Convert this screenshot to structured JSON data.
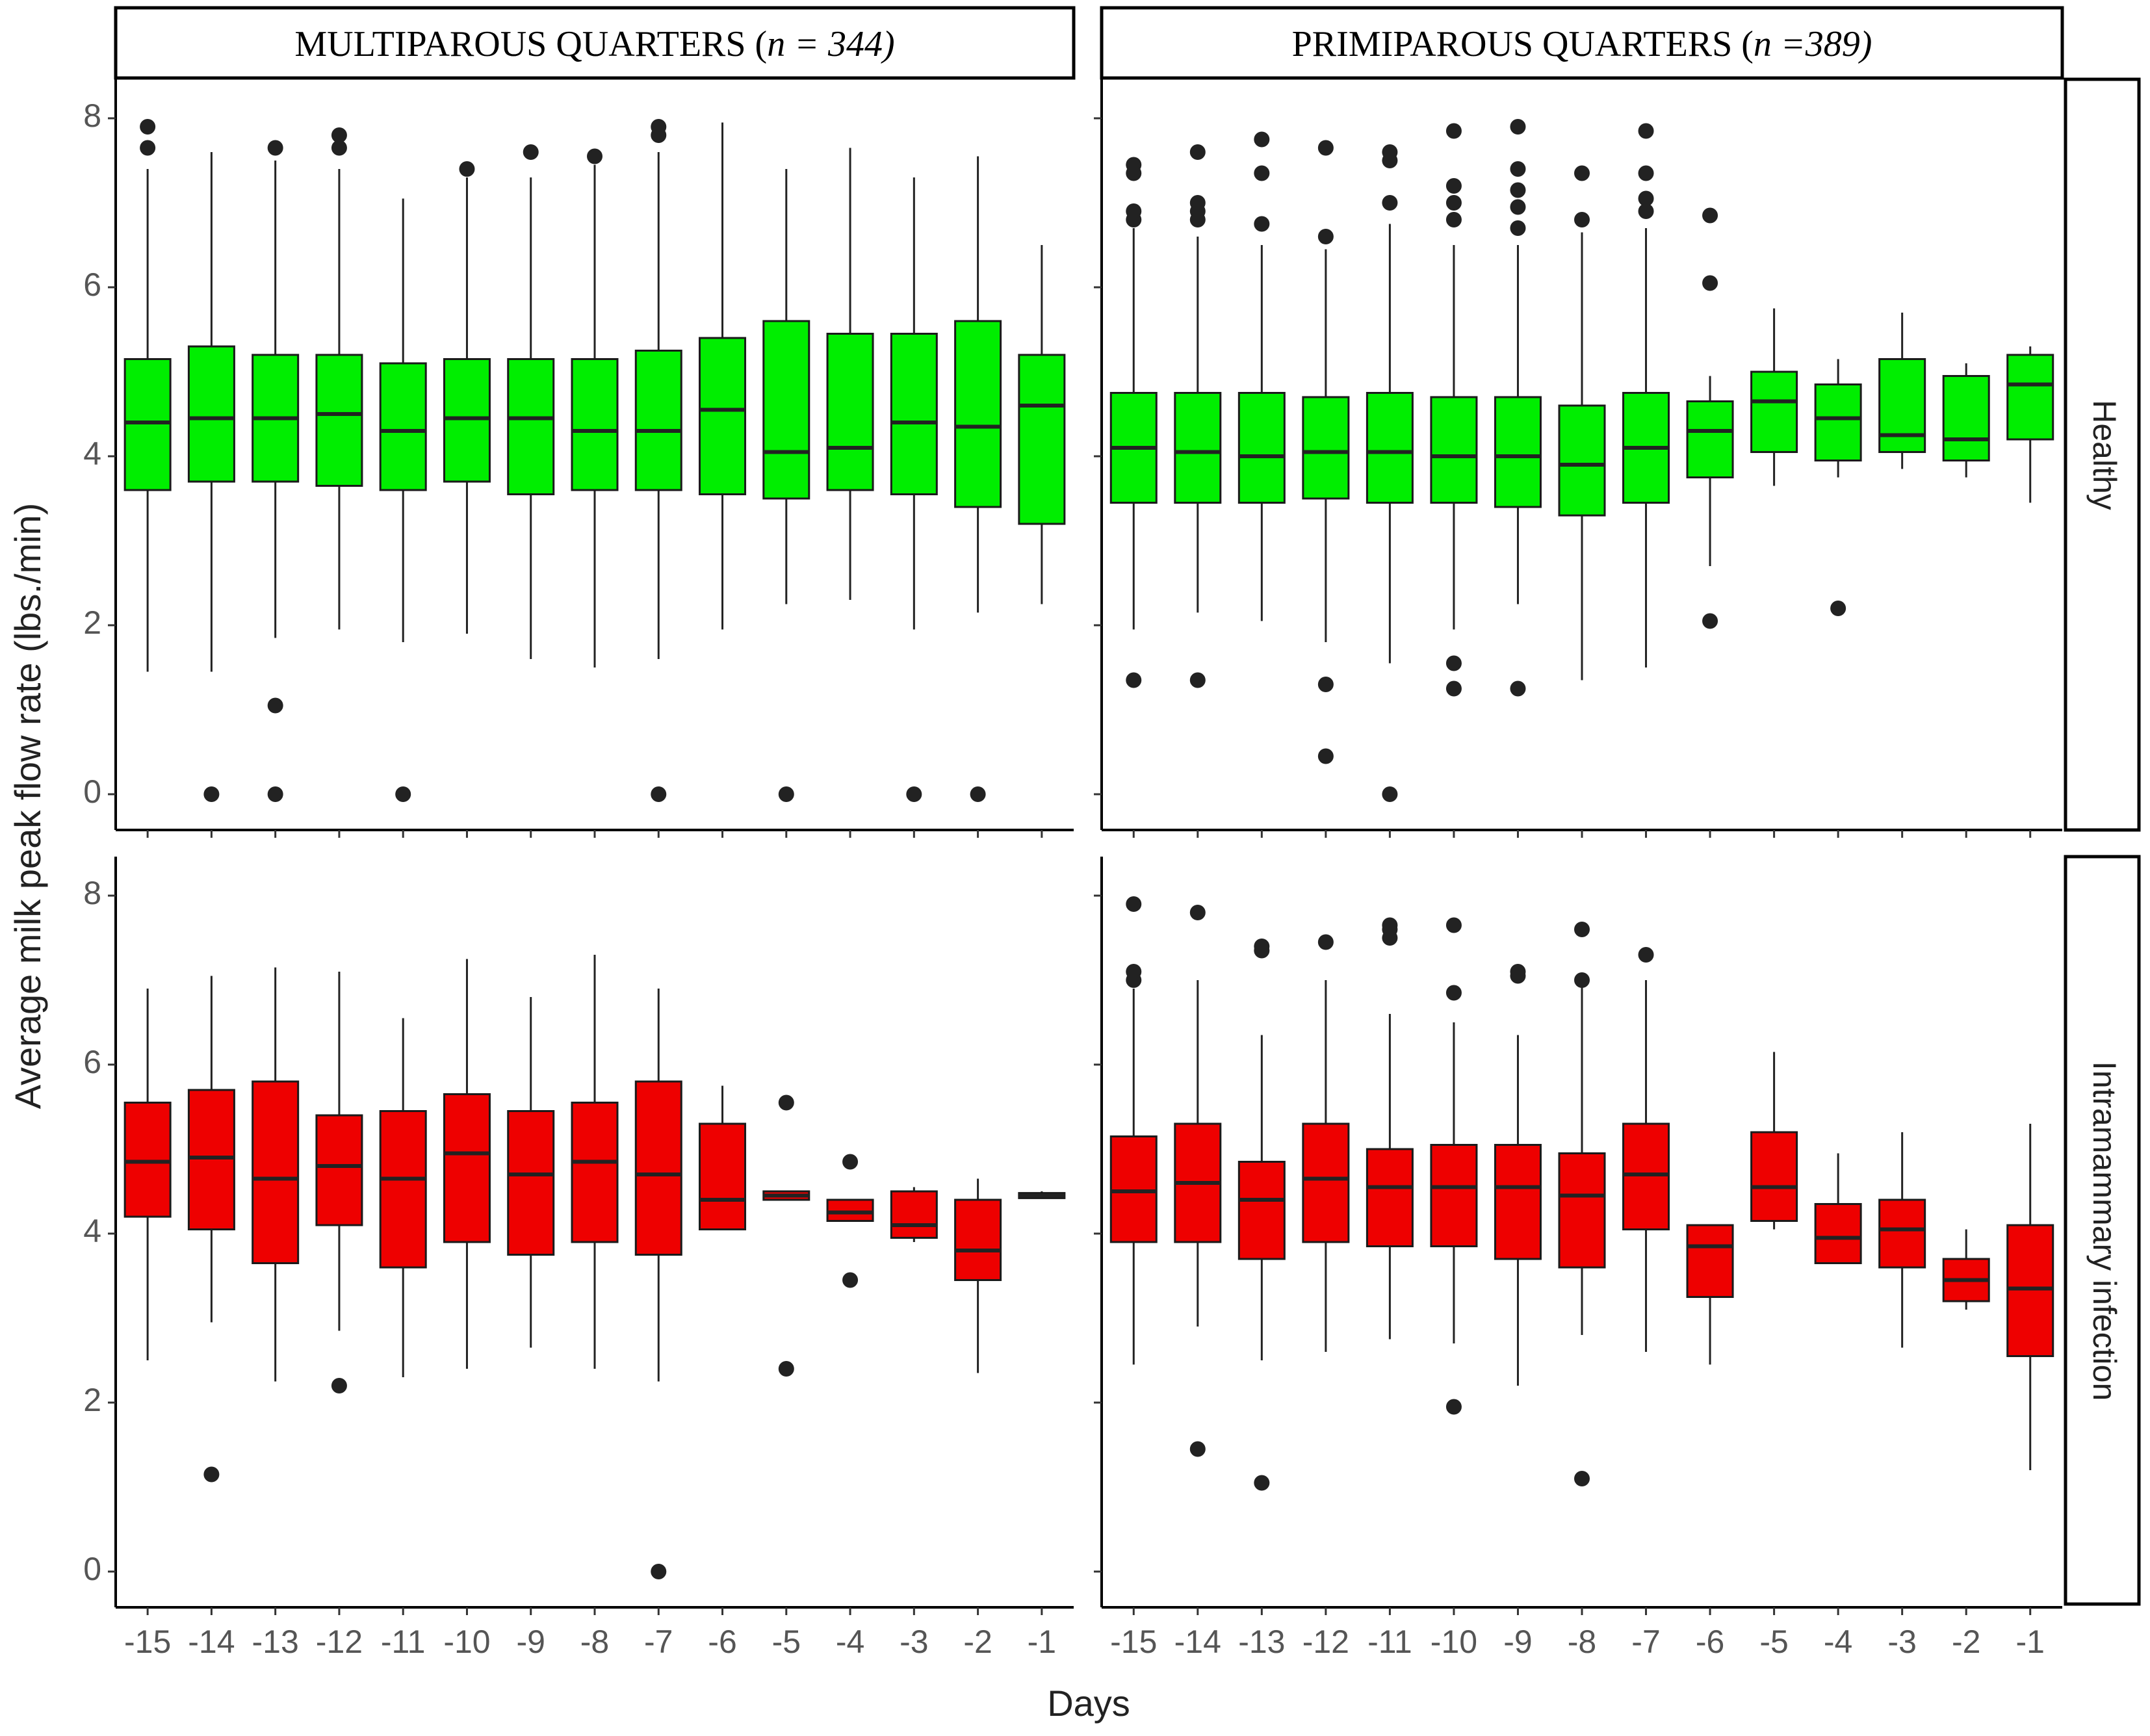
{
  "chart_data": {
    "type": "boxplot",
    "xlabel": "Days",
    "ylabel": "Average milk peak flow rate (lbs./min)",
    "ylim": [
      0,
      8
    ],
    "yticks": [
      "0",
      "2",
      "4",
      "6",
      "8"
    ],
    "categories": [
      "-15",
      "-14",
      "-13",
      "-12",
      "-11",
      "-10",
      "-9",
      "-8",
      "-7",
      "-6",
      "-5",
      "-4",
      "-3",
      "-2",
      "-1"
    ],
    "columns": [
      {
        "label_main": "MULTIPAROUS QUARTERS (",
        "label_n": "n = 344)"
      },
      {
        "label_main": "PRIMIPAROUS QUARTERS (",
        "label_n": "n =389)"
      }
    ],
    "rows": [
      {
        "label": "Healthy",
        "color": "#00ee00"
      },
      {
        "label": "Intramammary infection",
        "color": "#ee0000"
      }
    ],
    "panels": [
      {
        "row": 0,
        "col": 0,
        "boxes": [
          {
            "q1": 3.6,
            "med": 4.4,
            "q3": 5.15,
            "lo": 1.45,
            "hi": 7.4,
            "out": [
              7.65,
              7.9
            ]
          },
          {
            "q1": 3.7,
            "med": 4.45,
            "q3": 5.3,
            "lo": 1.45,
            "hi": 7.6,
            "out": [
              0
            ]
          },
          {
            "q1": 3.7,
            "med": 4.45,
            "q3": 5.2,
            "lo": 1.85,
            "hi": 7.5,
            "out": [
              0,
              1.05,
              7.65
            ]
          },
          {
            "q1": 3.65,
            "med": 4.5,
            "q3": 5.2,
            "lo": 1.95,
            "hi": 7.4,
            "out": [
              7.65,
              7.8
            ]
          },
          {
            "q1": 3.6,
            "med": 4.3,
            "q3": 5.1,
            "lo": 1.8,
            "hi": 7.05,
            "out": [
              0
            ]
          },
          {
            "q1": 3.7,
            "med": 4.45,
            "q3": 5.15,
            "lo": 1.9,
            "hi": 7.3,
            "out": [
              7.4
            ]
          },
          {
            "q1": 3.55,
            "med": 4.45,
            "q3": 5.15,
            "lo": 1.6,
            "hi": 7.3,
            "out": [
              7.6
            ]
          },
          {
            "q1": 3.6,
            "med": 4.3,
            "q3": 5.15,
            "lo": 1.5,
            "hi": 7.45,
            "out": [
              7.55
            ]
          },
          {
            "q1": 3.6,
            "med": 4.3,
            "q3": 5.25,
            "lo": 1.6,
            "hi": 7.6,
            "out": [
              0,
              7.8,
              7.9
            ]
          },
          {
            "q1": 3.55,
            "med": 4.55,
            "q3": 5.4,
            "lo": 1.95,
            "hi": 7.95,
            "out": []
          },
          {
            "q1": 3.5,
            "med": 4.05,
            "q3": 5.6,
            "lo": 2.25,
            "hi": 7.4,
            "out": [
              0
            ]
          },
          {
            "q1": 3.6,
            "med": 4.1,
            "q3": 5.45,
            "lo": 2.3,
            "hi": 7.65,
            "out": []
          },
          {
            "q1": 3.55,
            "med": 4.4,
            "q3": 5.45,
            "lo": 1.95,
            "hi": 7.3,
            "out": [
              0
            ]
          },
          {
            "q1": 3.4,
            "med": 4.35,
            "q3": 5.6,
            "lo": 2.15,
            "hi": 7.55,
            "out": [
              0
            ]
          },
          {
            "q1": 3.2,
            "med": 4.6,
            "q3": 5.2,
            "lo": 2.25,
            "hi": 6.5,
            "out": []
          }
        ]
      },
      {
        "row": 0,
        "col": 1,
        "boxes": [
          {
            "q1": 3.45,
            "med": 4.1,
            "q3": 4.75,
            "lo": 1.95,
            "hi": 6.7,
            "out": [
              1.35,
              6.8,
              6.9,
              7.35,
              7.45
            ]
          },
          {
            "q1": 3.45,
            "med": 4.05,
            "q3": 4.75,
            "lo": 2.15,
            "hi": 6.6,
            "out": [
              1.35,
              6.8,
              6.9,
              7.0,
              7.6
            ]
          },
          {
            "q1": 3.45,
            "med": 4.0,
            "q3": 4.75,
            "lo": 2.05,
            "hi": 6.5,
            "out": [
              6.75,
              7.35,
              7.75
            ]
          },
          {
            "q1": 3.5,
            "med": 4.05,
            "q3": 4.7,
            "lo": 1.8,
            "hi": 6.45,
            "out": [
              0.45,
              1.3,
              6.6,
              7.65
            ]
          },
          {
            "q1": 3.45,
            "med": 4.05,
            "q3": 4.75,
            "lo": 1.55,
            "hi": 6.75,
            "out": [
              0,
              7.0,
              7.5,
              7.6
            ]
          },
          {
            "q1": 3.45,
            "med": 4.0,
            "q3": 4.7,
            "lo": 1.95,
            "hi": 6.5,
            "out": [
              1.25,
              1.55,
              6.8,
              7.0,
              7.2,
              7.85
            ]
          },
          {
            "q1": 3.4,
            "med": 4.0,
            "q3": 4.7,
            "lo": 2.25,
            "hi": 6.5,
            "out": [
              1.25,
              6.7,
              6.95,
              7.15,
              7.4,
              7.9
            ]
          },
          {
            "q1": 3.3,
            "med": 3.9,
            "q3": 4.6,
            "lo": 1.35,
            "hi": 6.65,
            "out": [
              6.8,
              7.35
            ]
          },
          {
            "q1": 3.45,
            "med": 4.1,
            "q3": 4.75,
            "lo": 1.5,
            "hi": 6.7,
            "out": [
              6.9,
              7.05,
              7.35,
              7.85
            ]
          },
          {
            "q1": 3.75,
            "med": 4.3,
            "q3": 4.65,
            "lo": 2.7,
            "hi": 4.95,
            "out": [
              2.05,
              6.05,
              6.85
            ]
          },
          {
            "q1": 4.05,
            "med": 4.65,
            "q3": 5.0,
            "lo": 3.65,
            "hi": 5.75,
            "out": []
          },
          {
            "q1": 3.95,
            "med": 4.45,
            "q3": 4.85,
            "lo": 3.75,
            "hi": 5.15,
            "out": [
              2.2
            ]
          },
          {
            "q1": 4.05,
            "med": 4.25,
            "q3": 5.15,
            "lo": 3.85,
            "hi": 5.7,
            "out": []
          },
          {
            "q1": 3.95,
            "med": 4.2,
            "q3": 4.95,
            "lo": 3.75,
            "hi": 5.1,
            "out": []
          },
          {
            "q1": 4.2,
            "med": 4.85,
            "q3": 5.2,
            "lo": 3.45,
            "hi": 5.3,
            "out": []
          }
        ]
      },
      {
        "row": 1,
        "col": 0,
        "boxes": [
          {
            "q1": 4.2,
            "med": 4.85,
            "q3": 5.55,
            "lo": 2.5,
            "hi": 6.9,
            "out": []
          },
          {
            "q1": 4.05,
            "med": 4.9,
            "q3": 5.7,
            "lo": 2.95,
            "hi": 7.05,
            "out": [
              1.15
            ]
          },
          {
            "q1": 3.65,
            "med": 4.65,
            "q3": 5.8,
            "lo": 2.25,
            "hi": 7.15,
            "out": []
          },
          {
            "q1": 4.1,
            "med": 4.8,
            "q3": 5.4,
            "lo": 2.85,
            "hi": 7.1,
            "out": [
              2.2
            ]
          },
          {
            "q1": 3.6,
            "med": 4.65,
            "q3": 5.45,
            "lo": 2.3,
            "hi": 6.55,
            "out": []
          },
          {
            "q1": 3.9,
            "med": 4.95,
            "q3": 5.65,
            "lo": 2.4,
            "hi": 7.25,
            "out": []
          },
          {
            "q1": 3.75,
            "med": 4.7,
            "q3": 5.45,
            "lo": 2.65,
            "hi": 6.8,
            "out": []
          },
          {
            "q1": 3.9,
            "med": 4.85,
            "q3": 5.55,
            "lo": 2.4,
            "hi": 7.3,
            "out": []
          },
          {
            "q1": 3.75,
            "med": 4.7,
            "q3": 5.8,
            "lo": 2.25,
            "hi": 6.9,
            "out": [
              0
            ]
          },
          {
            "q1": 4.05,
            "med": 4.4,
            "q3": 5.3,
            "lo": 4.05,
            "hi": 5.75,
            "out": []
          },
          {
            "q1": 4.4,
            "med": 4.45,
            "q3": 4.5,
            "lo": 4.4,
            "hi": 4.5,
            "out": [
              2.4,
              5.55
            ]
          },
          {
            "q1": 4.15,
            "med": 4.25,
            "q3": 4.4,
            "lo": 4.15,
            "hi": 4.4,
            "out": [
              3.45,
              4.85
            ]
          },
          {
            "q1": 3.95,
            "med": 4.1,
            "q3": 4.5,
            "lo": 3.9,
            "hi": 4.55,
            "out": []
          },
          {
            "q1": 3.45,
            "med": 3.8,
            "q3": 4.4,
            "lo": 2.35,
            "hi": 4.65,
            "out": []
          },
          {
            "q1": 4.42,
            "med": 4.45,
            "q3": 4.48,
            "lo": 4.42,
            "hi": 4.5,
            "out": []
          }
        ]
      },
      {
        "row": 1,
        "col": 1,
        "boxes": [
          {
            "q1": 3.9,
            "med": 4.5,
            "q3": 5.15,
            "lo": 2.45,
            "hi": 6.9,
            "out": [
              7.0,
              7.1,
              7.9
            ]
          },
          {
            "q1": 3.9,
            "med": 4.6,
            "q3": 5.3,
            "lo": 2.9,
            "hi": 7.0,
            "out": [
              1.45,
              7.8
            ]
          },
          {
            "q1": 3.7,
            "med": 4.4,
            "q3": 4.85,
            "lo": 2.5,
            "hi": 6.35,
            "out": [
              1.05,
              7.35,
              7.4
            ]
          },
          {
            "q1": 3.9,
            "med": 4.65,
            "q3": 5.3,
            "lo": 2.6,
            "hi": 7.0,
            "out": [
              7.45
            ]
          },
          {
            "q1": 3.85,
            "med": 4.55,
            "q3": 5.0,
            "lo": 2.75,
            "hi": 6.6,
            "out": [
              7.5,
              7.6,
              7.65
            ]
          },
          {
            "q1": 3.85,
            "med": 4.55,
            "q3": 5.05,
            "lo": 2.7,
            "hi": 6.5,
            "out": [
              1.95,
              6.85,
              7.65
            ]
          },
          {
            "q1": 3.7,
            "med": 4.55,
            "q3": 5.05,
            "lo": 2.2,
            "hi": 6.35,
            "out": [
              7.05,
              7.1
            ]
          },
          {
            "q1": 3.6,
            "med": 4.45,
            "q3": 4.95,
            "lo": 2.8,
            "hi": 6.95,
            "out": [
              1.1,
              7.0,
              7.6
            ]
          },
          {
            "q1": 4.05,
            "med": 4.7,
            "q3": 5.3,
            "lo": 2.6,
            "hi": 7.0,
            "out": [
              7.3
            ]
          },
          {
            "q1": 3.25,
            "med": 3.85,
            "q3": 4.1,
            "lo": 2.45,
            "hi": 4.1,
            "out": []
          },
          {
            "q1": 4.15,
            "med": 4.55,
            "q3": 5.2,
            "lo": 4.05,
            "hi": 6.15,
            "out": []
          },
          {
            "q1": 3.65,
            "med": 3.95,
            "q3": 4.35,
            "lo": 3.65,
            "hi": 4.95,
            "out": []
          },
          {
            "q1": 3.6,
            "med": 4.05,
            "q3": 4.4,
            "lo": 2.65,
            "hi": 5.2,
            "out": []
          },
          {
            "q1": 3.2,
            "med": 3.45,
            "q3": 3.7,
            "lo": 3.1,
            "hi": 4.05,
            "out": []
          },
          {
            "q1": 2.55,
            "med": 3.35,
            "q3": 4.1,
            "lo": 1.2,
            "hi": 5.3,
            "out": []
          }
        ]
      }
    ]
  }
}
